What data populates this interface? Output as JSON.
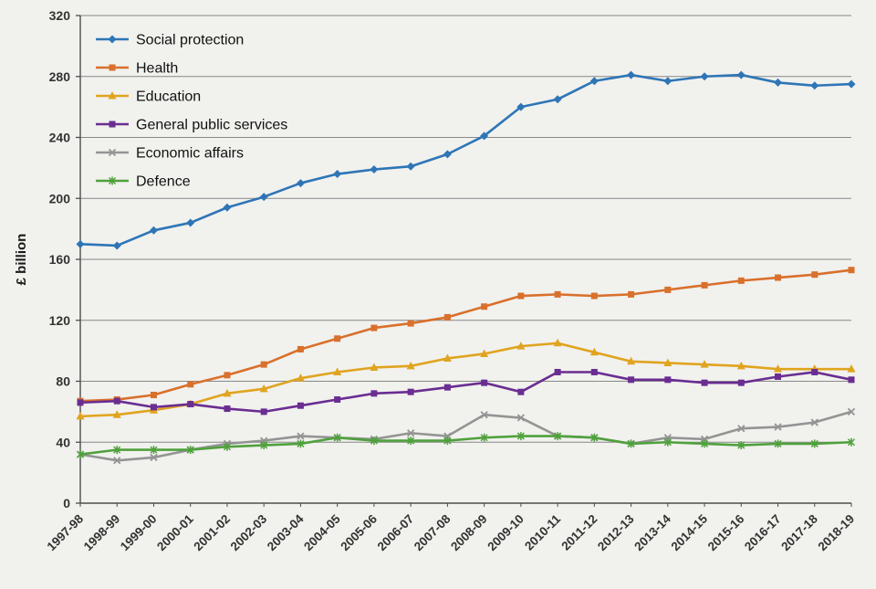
{
  "chart_data": {
    "type": "line",
    "title": "",
    "ylabel": "£ billion",
    "xlabel": "",
    "ylim": [
      0,
      320
    ],
    "yticks": [
      0,
      40,
      80,
      120,
      160,
      200,
      240,
      280,
      320
    ],
    "grid": "horizontal",
    "legend_position": "top-left-inside",
    "background_color": "#f1f1ee",
    "gridline_color": "#888888",
    "axis_color": "#4d4d4d",
    "categories": [
      "1997-98",
      "1998-99",
      "1999-00",
      "2000-01",
      "2001-02",
      "2002-03",
      "2003-04",
      "2004-05",
      "2005-06",
      "2006-07",
      "2007-08",
      "2008-09",
      "2009-10",
      "2010-11",
      "2011-12",
      "2012-13",
      "2013-14",
      "2014-15",
      "2015-16",
      "2016-17",
      "2017-18",
      "2018-19"
    ],
    "series": [
      {
        "name": "Social protection",
        "color": "#2e75b6",
        "marker": "diamond",
        "values": [
          170,
          169,
          179,
          184,
          194,
          201,
          210,
          216,
          219,
          221,
          229,
          241,
          260,
          265,
          277,
          281,
          277,
          280,
          281,
          276,
          274,
          275
        ]
      },
      {
        "name": "Health",
        "color": "#d9702b",
        "marker": "square",
        "values": [
          67,
          68,
          71,
          78,
          84,
          91,
          101,
          108,
          115,
          118,
          122,
          129,
          136,
          137,
          136,
          137,
          140,
          143,
          146,
          148,
          150,
          153
        ]
      },
      {
        "name": "Education",
        "color": "#e0a41f",
        "marker": "triangle",
        "values": [
          57,
          58,
          61,
          65,
          72,
          75,
          82,
          86,
          89,
          90,
          95,
          98,
          103,
          105,
          99,
          93,
          92,
          91,
          90,
          88,
          88,
          88
        ]
      },
      {
        "name": "General public services",
        "color": "#6a2d91",
        "marker": "square",
        "values": [
          66,
          67,
          63,
          65,
          62,
          60,
          64,
          68,
          72,
          73,
          76,
          79,
          73,
          86,
          86,
          81,
          81,
          79,
          79,
          83,
          86,
          81
        ]
      },
      {
        "name": "Economic affairs",
        "color": "#949494",
        "marker": "x",
        "values": [
          32,
          28,
          30,
          35,
          39,
          41,
          44,
          43,
          42,
          46,
          44,
          58,
          56,
          44,
          43,
          39,
          43,
          42,
          49,
          50,
          53,
          60
        ]
      },
      {
        "name": "Defence",
        "color": "#4fa13c",
        "marker": "star",
        "values": [
          32,
          35,
          35,
          35,
          37,
          38,
          39,
          43,
          41,
          41,
          41,
          43,
          44,
          44,
          43,
          39,
          40,
          39,
          38,
          39,
          39,
          40
        ]
      }
    ]
  }
}
